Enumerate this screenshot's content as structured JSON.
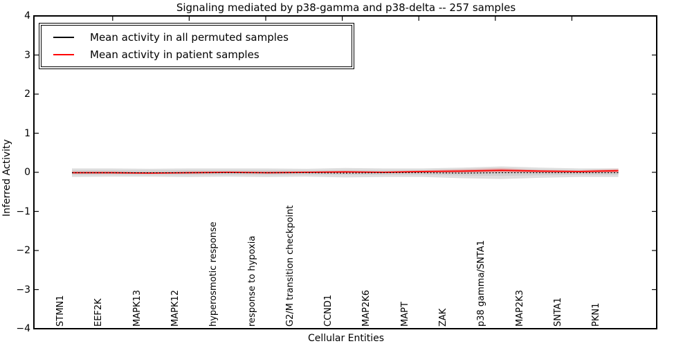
{
  "title": "Signaling mediated by p38-gamma and p38-delta -- 257 samples",
  "legend": {
    "items": [
      {
        "label": "Mean activity in all permuted samples",
        "color": "#000000"
      },
      {
        "label": "Mean activity in patient samples",
        "color": "#ff0000"
      }
    ],
    "position": "upper left"
  },
  "chart_data": {
    "type": "line",
    "title": "Signaling mediated by p38-gamma and p38-delta -- 257 samples",
    "xlabel": "Cellular Entities",
    "ylabel": "Inferred Activity",
    "ylim": [
      -4,
      4
    ],
    "ytick_values": [
      4,
      3,
      2,
      1,
      0,
      -1,
      -2,
      -3,
      -4
    ],
    "ytick_labels": [
      "4",
      "3",
      "2",
      "1",
      "0",
      "−1",
      "−2",
      "−3",
      "−4"
    ],
    "grid": false,
    "categories": [
      "STMN1",
      "EEF2K",
      "MAPK13",
      "MAPK12",
      "hyperosmotic response",
      "response to hypoxia",
      "G2/M transition checkpoint",
      "CCND1",
      "MAP2K6",
      "MAPT",
      "ZAK",
      "p38 gamma/SNTA1",
      "MAP2K3",
      "SNTA1",
      "PKN1"
    ],
    "series": [
      {
        "name": "Mean activity in all permuted samples",
        "color": "#000000",
        "style": "dotted",
        "values": [
          -0.01,
          -0.01,
          -0.01,
          -0.01,
          -0.01,
          -0.01,
          -0.01,
          -0.02,
          -0.01,
          -0.01,
          -0.02,
          -0.01,
          -0.01,
          -0.01,
          -0.01
        ],
        "band_upper": [
          0.1,
          0.1,
          0.09,
          0.1,
          0.1,
          0.1,
          0.09,
          0.11,
          0.1,
          0.1,
          0.12,
          0.15,
          0.12,
          0.1,
          0.1
        ],
        "band_lower": [
          -0.12,
          -0.11,
          -0.11,
          -0.12,
          -0.11,
          -0.12,
          -0.11,
          -0.13,
          -0.12,
          -0.12,
          -0.15,
          -0.17,
          -0.14,
          -0.12,
          -0.12
        ],
        "band_color": "#dedede",
        "band_inner_color": "#d0d0d0"
      },
      {
        "name": "Mean activity in patient samples",
        "color": "#ff0000",
        "style": "solid",
        "values": [
          -0.01,
          -0.01,
          -0.02,
          -0.01,
          0.0,
          -0.01,
          0.0,
          0.01,
          0.0,
          0.02,
          0.03,
          0.05,
          0.03,
          0.02,
          0.04
        ],
        "band_upper": [
          0.01,
          0.01,
          0.0,
          0.01,
          0.02,
          0.01,
          0.02,
          0.03,
          0.02,
          0.05,
          0.08,
          0.11,
          0.06,
          0.05,
          0.09
        ],
        "band_lower": [
          -0.03,
          -0.03,
          -0.04,
          -0.03,
          -0.02,
          -0.03,
          -0.02,
          -0.01,
          -0.02,
          -0.01,
          -0.01,
          0.0,
          -0.01,
          -0.01,
          -0.01
        ],
        "band_color": "rgba(255,0,0,0.18)"
      }
    ]
  }
}
